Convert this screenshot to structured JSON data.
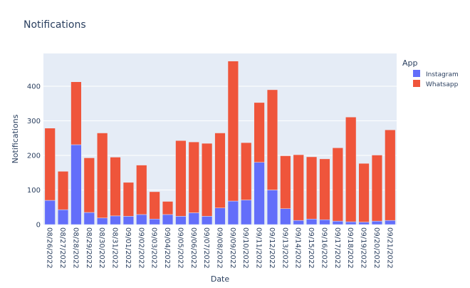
{
  "chart_data": {
    "type": "bar",
    "barmode": "stack",
    "title": "Notifications",
    "xlabel": "Date",
    "ylabel": "Notifications",
    "ylim": [
      0,
      495
    ],
    "yticks": [
      0,
      100,
      200,
      300,
      400
    ],
    "grid": true,
    "legend_title": "App",
    "legend_position": "top-right",
    "categories": [
      "08/26/2022",
      "08/27/2022",
      "08/28/2022",
      "08/29/2022",
      "08/30/2022",
      "08/31/2022",
      "09/01/2022",
      "09/02/2022",
      "09/03/2022",
      "09/04/2022",
      "09/05/2022",
      "09/06/2022",
      "09/07/2022",
      "09/08/2022",
      "09/09/2022",
      "09/10/2022",
      "09/11/2022",
      "09/12/2022",
      "09/13/2022",
      "09/14/2022",
      "09/15/2022",
      "09/16/2022",
      "09/17/2022",
      "09/18/2022",
      "09/19/2022",
      "09/20/2022",
      "09/21/2022"
    ],
    "series": [
      {
        "name": "Instagram",
        "color": "#636efa",
        "values": [
          70,
          43,
          231,
          35,
          19,
          25,
          24,
          29,
          16,
          29,
          24,
          34,
          24,
          48,
          68,
          71,
          180,
          100,
          46,
          12,
          16,
          14,
          10,
          8,
          7,
          10,
          12
        ]
      },
      {
        "name": "Whatsapp",
        "color": "#ef553b",
        "values": [
          209,
          111,
          182,
          158,
          246,
          170,
          98,
          143,
          79,
          38,
          219,
          205,
          211,
          217,
          405,
          166,
          173,
          290,
          153,
          190,
          180,
          176,
          212,
          303,
          170,
          191,
          262
        ]
      }
    ]
  },
  "colors": {
    "plot_bg": "#e5ecf6",
    "grid": "#ffffff",
    "text": "#2a3f5f"
  }
}
